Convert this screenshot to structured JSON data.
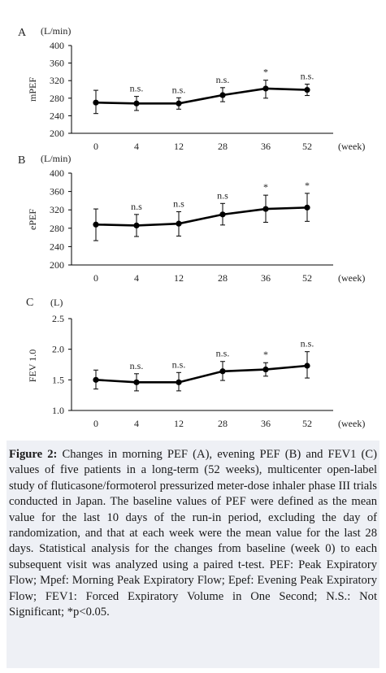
{
  "chart_data": [
    {
      "type": "line",
      "panel_label": "A",
      "unit_label": "(L/min)",
      "ylabel": "mPEF",
      "xlabel_unit": "(week)",
      "categories": [
        "0",
        "4",
        "12",
        "28",
        "36",
        "52"
      ],
      "ylim": [
        200,
        400
      ],
      "yticks": [
        "200",
        "240",
        "280",
        "320",
        "360",
        "400"
      ],
      "series": [
        {
          "values": [
            270,
            268,
            268,
            287,
            302,
            299
          ]
        }
      ],
      "error_bars": [
        [
          245,
          298
        ],
        [
          252,
          284
        ],
        [
          255,
          281
        ],
        [
          272,
          304
        ],
        [
          280,
          321
        ],
        [
          286,
          312
        ]
      ],
      "annotations": [
        "",
        "n.s.",
        "n.s.",
        "n.s.",
        "*",
        "n.s."
      ],
      "grid": false
    },
    {
      "type": "line",
      "panel_label": "B",
      "unit_label": "(L/min)",
      "ylabel": "ePEF",
      "xlabel_unit": "(week)",
      "categories": [
        "0",
        "4",
        "12",
        "28",
        "36",
        "52"
      ],
      "ylim": [
        200,
        400
      ],
      "yticks": [
        "200",
        "240",
        "280",
        "320",
        "360",
        "400"
      ],
      "series": [
        {
          "values": [
            288,
            286,
            290,
            310,
            322,
            325
          ]
        }
      ],
      "error_bars": [
        [
          253,
          322
        ],
        [
          262,
          310
        ],
        [
          263,
          316
        ],
        [
          287,
          334
        ],
        [
          293,
          352
        ],
        [
          295,
          356
        ]
      ],
      "annotations": [
        "",
        "n.s",
        "n.s",
        "n.s",
        "*",
        "*"
      ],
      "grid": false
    },
    {
      "type": "line",
      "panel_label": "C",
      "unit_label": "(L)",
      "ylabel": "FEV 1.0",
      "xlabel_unit": "(week)",
      "categories": [
        "0",
        "4",
        "12",
        "28",
        "36",
        "52"
      ],
      "ylim": [
        1.0,
        2.5
      ],
      "yticks": [
        "1.0",
        "1.5",
        "2.0",
        "2.5"
      ],
      "series": [
        {
          "values": [
            1.5,
            1.46,
            1.46,
            1.64,
            1.67,
            1.73
          ]
        }
      ],
      "error_bars": [
        [
          1.35,
          1.66
        ],
        [
          1.32,
          1.6
        ],
        [
          1.32,
          1.62
        ],
        [
          1.49,
          1.8
        ],
        [
          1.56,
          1.78
        ],
        [
          1.53,
          1.96
        ]
      ],
      "annotations": [
        "",
        "n.s.",
        "n.s.",
        "n.s.",
        "*",
        "n.s."
      ],
      "grid": false
    }
  ],
  "caption": {
    "label": "Figure 2:",
    "text": " Changes in morning PEF (A), evening PEF (B) and FEV1 (C) values of five patients in a long-term (52 weeks), multicenter open-label study of fluticasone/formoterol pressurized meter-dose inhaler phase III trials conducted in Japan. The baseline values of PEF were defined as the mean value for the last 10 days of the run-in period, excluding the day of randomization, and that at each week were the mean value for the last 28 days. Statistical analysis for the changes from baseline (week 0) to each subsequent visit was analyzed using a paired t-test. PEF: Peak Expiratory Flow; Mpef: Morning Peak Expiratory Flow; Epef: Evening Peak Expiratory Flow; FEV1: Forced Expiratory Volume in One Second; N.S.: Not Significant; *p<0.05."
  },
  "colors": {
    "caption_bg": "#eef0f5",
    "line": "#000000"
  }
}
